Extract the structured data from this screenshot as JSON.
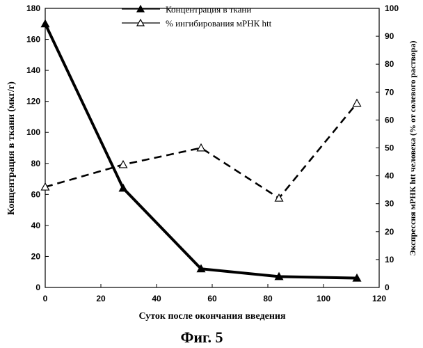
{
  "chart_data": {
    "type": "line",
    "xlabel": "Суток после окончания введения",
    "ylabel_left": "Концентрация в ткани (мкг/г)",
    "ylabel_right": "Экспрессия мРНК htt человека (% от солевого раствора)",
    "xlim": [
      0,
      120
    ],
    "ylim_left": [
      0,
      180
    ],
    "ylim_right": [
      0,
      100
    ],
    "x_ticks": [
      "0",
      "20",
      "40",
      "60",
      "80",
      "100",
      "120"
    ],
    "y_left_ticks": [
      "0",
      "20",
      "40",
      "60",
      "80",
      "100",
      "120",
      "140",
      "160",
      "180"
    ],
    "y_right_ticks": [
      "0",
      "10",
      "20",
      "30",
      "40",
      "50",
      "60",
      "70",
      "80",
      "90",
      "100"
    ],
    "grid": false,
    "legend_position": "top-center",
    "series": [
      {
        "name": "Концентрация в ткани",
        "axis": "left",
        "marker": "filled-triangle",
        "line_style": "solid",
        "color": "#000000",
        "x": [
          0,
          28,
          56,
          84,
          112
        ],
        "values": [
          170,
          64,
          12,
          7,
          6
        ]
      },
      {
        "name": "% ингибирования мРНК htt",
        "axis": "right",
        "marker": "open-triangle",
        "line_style": "dashed",
        "color": "#000000",
        "x": [
          0,
          28,
          56,
          84,
          112
        ],
        "values": [
          36,
          44,
          50,
          32,
          66
        ]
      }
    ]
  },
  "caption": "Фиг. 5"
}
